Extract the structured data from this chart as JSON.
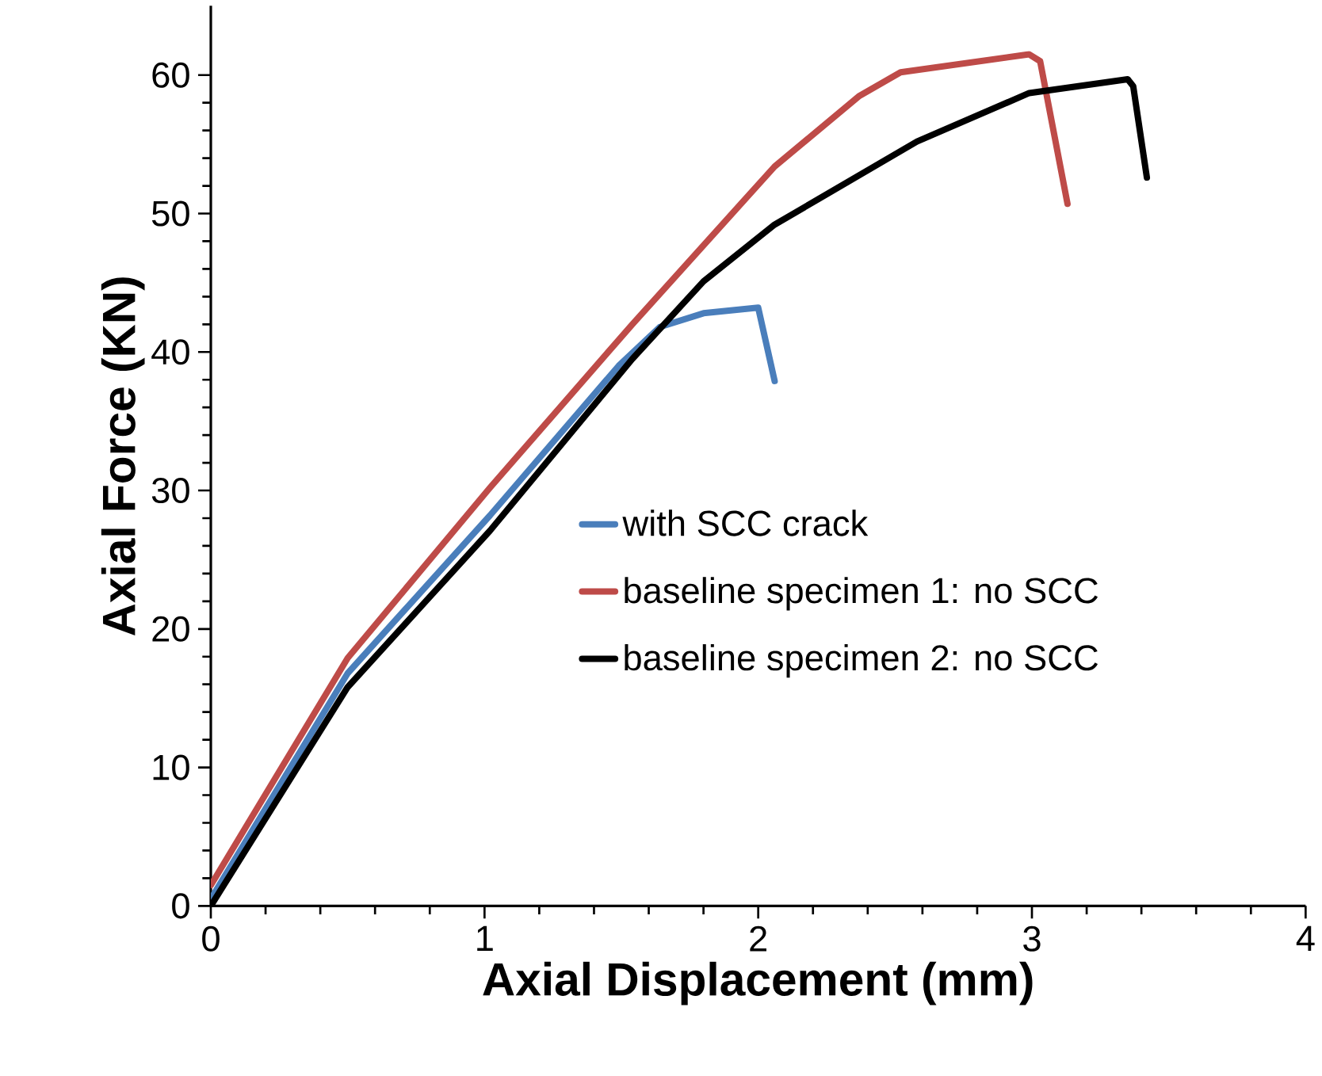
{
  "chart_data": {
    "type": "line",
    "xlabel": "Axial Displacement (mm)",
    "ylabel": "Axial Force (KN)",
    "xlim": [
      0,
      4
    ],
    "ylim": [
      0,
      65
    ],
    "xticks": [
      0,
      1,
      2,
      3,
      4
    ],
    "yticks": [
      0,
      10,
      20,
      30,
      40,
      50,
      60
    ],
    "grid": false,
    "legend": "right",
    "marker": "none",
    "line_style": "solid",
    "series": [
      {
        "name": "with SCC crack",
        "color": "#4a7ebb",
        "x": [
          0,
          0.5,
          1.02,
          1.49,
          1.64,
          1.8,
          2.0,
          2.06
        ],
        "values": [
          0.5,
          16.8,
          28.2,
          39,
          41.8,
          42.8,
          43.2,
          37.9
        ]
      },
      {
        "name": "baseline specimen 1: no SCC",
        "color": "#be4b48",
        "x": [
          0,
          0.5,
          1.02,
          1.54,
          2.06,
          2.37,
          2.52,
          2.99,
          3.03,
          3.13
        ],
        "values": [
          1.5,
          17.9,
          30.2,
          42,
          53.4,
          58.5,
          60.2,
          61.5,
          61,
          50.7
        ]
      },
      {
        "name": "baseline specimen 2: no SCC",
        "color": "#000000",
        "x": [
          0,
          0.5,
          1.02,
          1.54,
          1.8,
          2.06,
          2.58,
          2.99,
          3.35,
          3.37,
          3.42
        ],
        "values": [
          0,
          15.8,
          27.1,
          39.5,
          45.1,
          49.2,
          55.2,
          58.7,
          59.7,
          59.2,
          52.6
        ]
      }
    ]
  }
}
